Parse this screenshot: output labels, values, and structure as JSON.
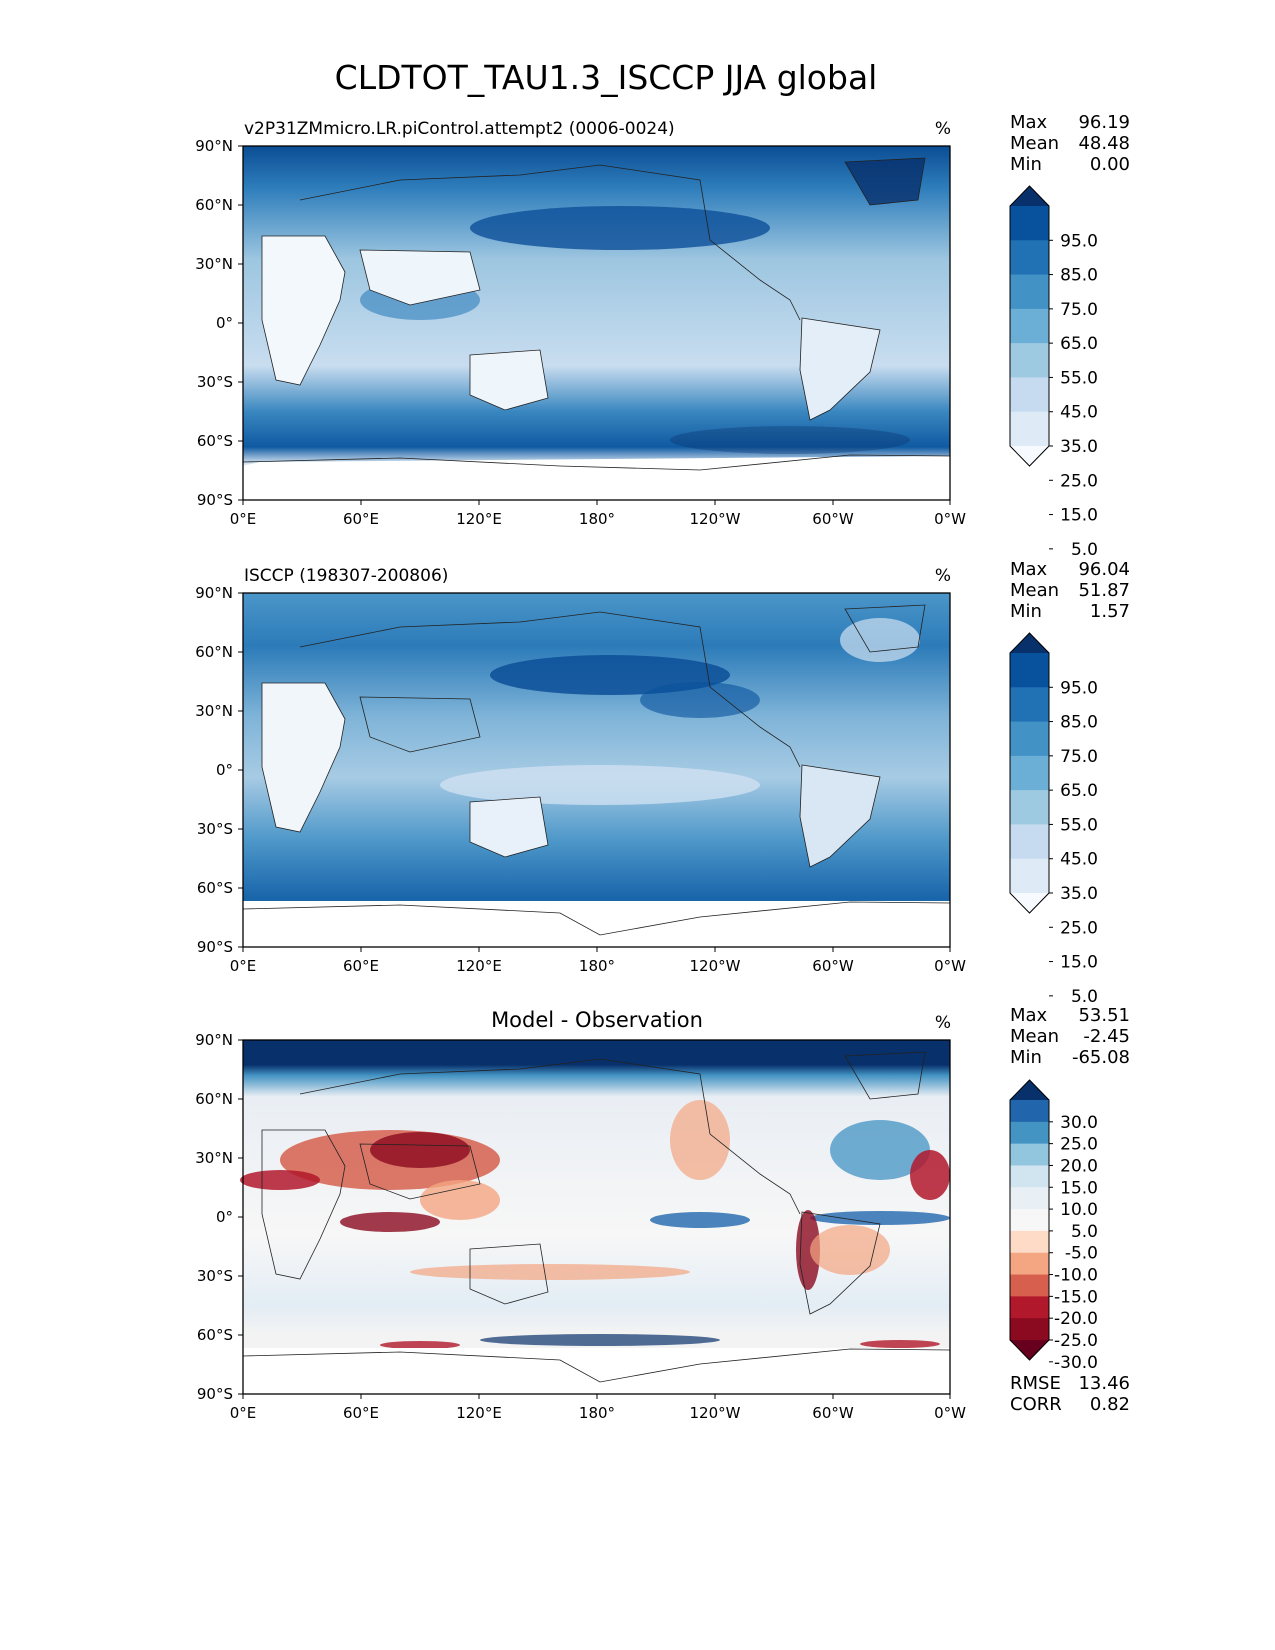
{
  "figure": {
    "title": "CLDTOT_TAU1.3_ISCCP JJA global"
  },
  "axes": {
    "lat_ticks": [
      "90°N",
      "60°N",
      "30°N",
      "0°",
      "30°S",
      "60°S",
      "90°S"
    ],
    "lon_ticks": [
      "0°E",
      "60°E",
      "120°E",
      "180°",
      "120°W",
      "60°W",
      "0°W"
    ]
  },
  "chart_data": [
    {
      "type": "heatmap",
      "title": "v2P31ZMmicro.LR.piControl.attempt2 (0006-0024)",
      "units": "%",
      "stats": [
        {
          "label": "Max",
          "value": "96.19"
        },
        {
          "label": "Mean",
          "value": "48.48"
        },
        {
          "label": "Min",
          "value": "0.00"
        }
      ],
      "colorbar": {
        "ticks": [
          "95.0",
          "85.0",
          "75.0",
          "65.0",
          "55.0",
          "45.0",
          "35.0",
          "25.0",
          "15.0",
          "5.0"
        ],
        "colors": [
          "#08306b",
          "#08519c",
          "#2171b5",
          "#4292c6",
          "#6baed6",
          "#9ecae1",
          "#c6dbef",
          "#deebf7",
          "#f7fbff"
        ]
      },
      "xlim": [
        0,
        360
      ],
      "ylim": [
        -90,
        90
      ]
    },
    {
      "type": "heatmap",
      "title": "ISCCP (198307-200806)",
      "units": "%",
      "stats": [
        {
          "label": "Max",
          "value": "96.04"
        },
        {
          "label": "Mean",
          "value": "51.87"
        },
        {
          "label": "Min",
          "value": "1.57"
        }
      ],
      "colorbar": {
        "ticks": [
          "95.0",
          "85.0",
          "75.0",
          "65.0",
          "55.0",
          "45.0",
          "35.0",
          "25.0",
          "15.0",
          "5.0"
        ],
        "colors": [
          "#08306b",
          "#08519c",
          "#2171b5",
          "#4292c6",
          "#6baed6",
          "#9ecae1",
          "#c6dbef",
          "#deebf7",
          "#f7fbff"
        ]
      },
      "xlim": [
        0,
        360
      ],
      "ylim": [
        -90,
        90
      ]
    },
    {
      "type": "heatmap",
      "title": "Model - Observation",
      "units": "%",
      "stats": [
        {
          "label": "Max",
          "value": "53.51"
        },
        {
          "label": "Mean",
          "value": "-2.45"
        },
        {
          "label": "Min",
          "value": "-65.08"
        }
      ],
      "colorbar": {
        "ticks": [
          "30.0",
          "25.0",
          "20.0",
          "15.0",
          "10.0",
          "5.0",
          "-5.0",
          "-10.0",
          "-15.0",
          "-20.0",
          "-25.0",
          "-30.0"
        ],
        "colors": [
          "#08306b",
          "#2166ac",
          "#4393c3",
          "#92c5de",
          "#d1e5f0",
          "#e8f0f6",
          "#f7f7f7",
          "#fddbc7",
          "#f4a582",
          "#d6604d",
          "#b2182b",
          "#8b0a1f",
          "#67001f"
        ]
      },
      "metrics": [
        {
          "label": "RMSE",
          "value": "13.46"
        },
        {
          "label": "CORR",
          "value": "0.82"
        }
      ],
      "xlim": [
        0,
        360
      ],
      "ylim": [
        -90,
        90
      ]
    }
  ]
}
